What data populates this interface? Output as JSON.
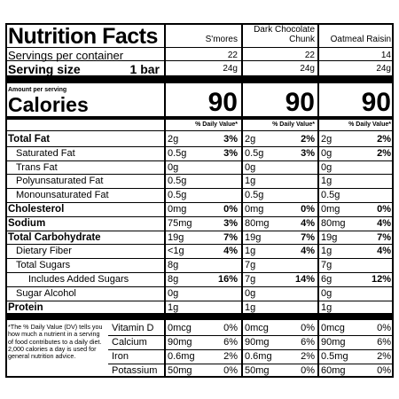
{
  "header": {
    "title": "Nutrition Facts",
    "servings_label": "Servings per container",
    "serving_size_label": "Serving size",
    "serving_size": "1 bar",
    "amount_label": "Amount per serving",
    "calories_label": "Calories",
    "footnote": "*The % Daily Value (DV) tells you how much a nutrient in a serving of food contributes to a daily diet. 2,000 calories a day is used for general nutrition advice."
  },
  "products": [
    {
      "name": "S'mores",
      "servings": "22",
      "serving_weight": "24g",
      "calories": "90",
      "dv_header": "% Daily Value*"
    },
    {
      "name": "Dark Chocolate Chunk",
      "servings": "22",
      "serving_weight": "24g",
      "calories": "90",
      "dv_header": "% Daily Value*"
    },
    {
      "name": "Oatmeal Raisin",
      "servings": "14",
      "serving_weight": "24g",
      "calories": "90",
      "dv_header": "% Daily Value*"
    }
  ],
  "nutrients": [
    {
      "name": "Total Fat",
      "values": [
        {
          "amount": "2g",
          "dv": "3%"
        },
        {
          "amount": "2g",
          "dv": "2%"
        },
        {
          "amount": "2g",
          "dv": "2%"
        }
      ]
    },
    {
      "name": "Saturated Fat",
      "values": [
        {
          "amount": "0.5g",
          "dv": "3%"
        },
        {
          "amount": "0.5g",
          "dv": "3%"
        },
        {
          "amount": "0g",
          "dv": "2%"
        }
      ]
    },
    {
      "name": "Trans Fat",
      "values": [
        {
          "amount": "0g"
        },
        {
          "amount": "0g"
        },
        {
          "amount": "0g"
        }
      ]
    },
    {
      "name": "Polyunsaturated Fat",
      "values": [
        {
          "amount": "0.5g"
        },
        {
          "amount": "1g"
        },
        {
          "amount": "1g"
        }
      ]
    },
    {
      "name": "Monounsaturated Fat",
      "values": [
        {
          "amount": "0.5g"
        },
        {
          "amount": "0.5g"
        },
        {
          "amount": "0.5g"
        }
      ]
    },
    {
      "name": "Cholesterol",
      "values": [
        {
          "amount": "0mg",
          "dv": "0%"
        },
        {
          "amount": "0mg",
          "dv": "0%"
        },
        {
          "amount": "0mg",
          "dv": "0%"
        }
      ]
    },
    {
      "name": "Sodium",
      "values": [
        {
          "amount": "75mg",
          "dv": "3%"
        },
        {
          "amount": "80mg",
          "dv": "4%"
        },
        {
          "amount": "80mg",
          "dv": "4%"
        }
      ]
    },
    {
      "name": "Total Carbohydrate",
      "values": [
        {
          "amount": "19g",
          "dv": "7%"
        },
        {
          "amount": "19g",
          "dv": "7%"
        },
        {
          "amount": "19g",
          "dv": "7%"
        }
      ]
    },
    {
      "name": "Dietary Fiber",
      "values": [
        {
          "amount": "<1g",
          "dv": "4%"
        },
        {
          "amount": "1g",
          "dv": "4%"
        },
        {
          "amount": "1g",
          "dv": "4%"
        }
      ]
    },
    {
      "name": "Total Sugars",
      "values": [
        {
          "amount": "8g"
        },
        {
          "amount": "7g"
        },
        {
          "amount": "7g"
        }
      ]
    },
    {
      "name": "Includes Added Sugars",
      "values": [
        {
          "amount": "8g",
          "dv": "16%"
        },
        {
          "amount": "7g",
          "dv": "14%"
        },
        {
          "amount": "6g",
          "dv": "12%"
        }
      ]
    },
    {
      "name": "Sugar Alcohol",
      "values": [
        {
          "amount": "0g"
        },
        {
          "amount": "0g"
        },
        {
          "amount": "0g"
        }
      ]
    },
    {
      "name": "Protein",
      "values": [
        {
          "amount": "1g"
        },
        {
          "amount": "1g"
        },
        {
          "amount": "1g"
        }
      ]
    }
  ],
  "vitamins": [
    {
      "name": "Vitamin D",
      "values": [
        {
          "amount": "0mcg",
          "dv": "0%"
        },
        {
          "amount": "0mcg",
          "dv": "0%"
        },
        {
          "amount": "0mcg",
          "dv": "0%"
        }
      ]
    },
    {
      "name": "Calcium",
      "values": [
        {
          "amount": "90mg",
          "dv": "6%"
        },
        {
          "amount": "90mg",
          "dv": "6%"
        },
        {
          "amount": "90mg",
          "dv": "6%"
        }
      ]
    },
    {
      "name": "Iron",
      "values": [
        {
          "amount": "0.6mg",
          "dv": "2%"
        },
        {
          "amount": "0.6mg",
          "dv": "2%"
        },
        {
          "amount": "0.5mg",
          "dv": "2%"
        }
      ]
    },
    {
      "name": "Potassium",
      "values": [
        {
          "amount": "50mg",
          "dv": "0%"
        },
        {
          "amount": "50mg",
          "dv": "0%"
        },
        {
          "amount": "60mg",
          "dv": "0%"
        }
      ]
    }
  ]
}
